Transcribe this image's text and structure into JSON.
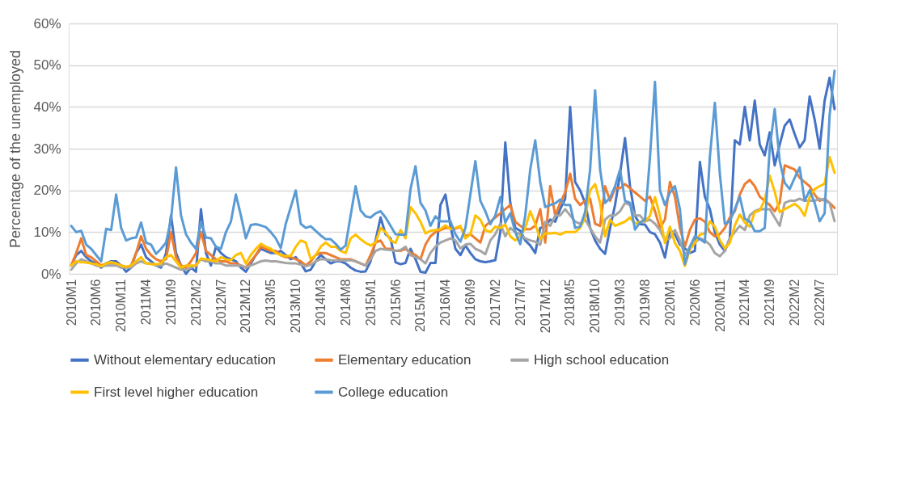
{
  "chart_data": {
    "type": "line",
    "ylabel": "Percentage of the unemployed",
    "categories": [
      "2010M1",
      null,
      null,
      null,
      null,
      "2010M6",
      null,
      null,
      null,
      null,
      "2010M11",
      null,
      null,
      null,
      null,
      "2011M4",
      null,
      null,
      null,
      null,
      "2011M9",
      null,
      null,
      null,
      null,
      "2012M2",
      null,
      null,
      null,
      null,
      "2012M7",
      null,
      null,
      null,
      null,
      "2012M12",
      null,
      null,
      null,
      null,
      "2013M5",
      null,
      null,
      null,
      null,
      "2013M10",
      null,
      null,
      null,
      null,
      "2014M3",
      null,
      null,
      null,
      null,
      "2014M8",
      null,
      null,
      null,
      null,
      "2015M1",
      null,
      null,
      null,
      null,
      "2015M6",
      null,
      null,
      null,
      null,
      "2015M11",
      null,
      null,
      null,
      null,
      "2016M4",
      null,
      null,
      null,
      null,
      "2016M9",
      null,
      null,
      null,
      null,
      "2017M2",
      null,
      null,
      null,
      null,
      "2017M7",
      null,
      null,
      null,
      null,
      "2017M12",
      null,
      null,
      null,
      null,
      "2018M5",
      null,
      null,
      null,
      null,
      "2018M10",
      null,
      null,
      null,
      null,
      "2019M3",
      null,
      null,
      null,
      null,
      "2019M8",
      null,
      null,
      null,
      null,
      "2020M1",
      null,
      null,
      null,
      null,
      "2020M6",
      null,
      null,
      null,
      null,
      "2020M11",
      null,
      null,
      null,
      null,
      "2021M4",
      null,
      null,
      null,
      null,
      "2021M9",
      null,
      null,
      null,
      null,
      "2022M2",
      null,
      null,
      null,
      null,
      "2022M7",
      null,
      null,
      null
    ],
    "ylim": [
      0,
      60
    ],
    "yticks": [
      {
        "value": 0,
        "label": "0%"
      },
      {
        "value": 10,
        "label": "10%"
      },
      {
        "value": 20,
        "label": "20%"
      },
      {
        "value": 30,
        "label": "30%"
      },
      {
        "value": 40,
        "label": "40%"
      },
      {
        "value": 50,
        "label": "50%"
      },
      {
        "value": 60,
        "label": "60%"
      }
    ],
    "grid": "y",
    "legend": "bottom",
    "line_style": "solid",
    "marker": "none",
    "series": [
      {
        "name": "Without elementary education",
        "color": "#4472c4",
        "values": [
          2,
          4.5,
          5.5,
          4,
          3,
          2.5,
          1.5,
          2.5,
          3,
          3,
          2,
          0.5,
          1.5,
          5,
          7,
          4,
          3,
          2,
          1.5,
          5,
          14,
          5,
          2,
          0,
          1.5,
          0.5,
          15.5,
          5,
          2,
          6.5,
          5,
          4,
          3.5,
          3,
          1.5,
          0.5,
          2.5,
          4.5,
          6,
          5.5,
          5,
          5,
          5.5,
          4.5,
          3.5,
          4,
          2.5,
          0.6,
          1,
          3,
          4.5,
          3.5,
          2.5,
          3,
          3,
          2.5,
          1.5,
          0.8,
          0.5,
          0.6,
          3,
          8,
          13.5,
          9.5,
          8.5,
          2.8,
          2.3,
          2.6,
          6,
          3.5,
          0.5,
          0.3,
          2.6,
          2.6,
          16.5,
          19,
          11.5,
          6,
          4.5,
          6.8,
          5,
          3.5,
          3,
          2.8,
          3,
          3.3,
          10,
          31.5,
          17,
          11,
          10.3,
          8,
          6.8,
          5,
          11,
          11.3,
          13,
          12.5,
          15.5,
          18,
          40,
          22,
          20,
          17,
          11,
          8,
          6,
          4.8,
          11,
          16.5,
          24,
          32.5,
          21,
          13.9,
          11.9,
          11.8,
          10,
          9.5,
          7.5,
          3.9,
          10.5,
          9.5,
          7,
          6.1,
          5,
          5.5,
          26.8,
          18.5,
          15.5,
          10,
          7,
          5.5,
          8.5,
          32,
          31,
          40,
          32,
          41.5,
          31,
          28.4,
          33.9,
          26,
          31,
          35.5,
          37,
          33.5,
          30.3,
          32,
          42.5,
          37,
          30,
          41.5,
          47,
          39.5
        ]
      },
      {
        "name": "Elementary education",
        "color": "#ed7d31",
        "values": [
          2,
          5,
          8.5,
          4.5,
          4,
          3,
          2,
          2.5,
          2.5,
          2.5,
          2,
          1.5,
          2,
          5,
          9,
          6,
          4.5,
          3.5,
          3,
          3.5,
          10,
          4,
          2,
          1.5,
          3,
          5,
          10,
          5.5,
          4.5,
          3.5,
          3,
          3,
          2.5,
          2.5,
          2,
          1.5,
          3,
          4.5,
          6.5,
          6,
          5.5,
          5.5,
          4.5,
          4,
          4,
          3.5,
          3,
          2,
          3,
          4.5,
          5,
          5,
          4.5,
          4,
          3.5,
          3.5,
          3.5,
          3,
          2.5,
          2,
          4.5,
          7.5,
          8,
          6,
          6,
          5.5,
          5.5,
          6,
          5,
          4.5,
          3.5,
          7,
          9,
          10,
          10.5,
          11,
          11,
          10.8,
          11.3,
          9,
          9.5,
          8.5,
          7.5,
          11.5,
          12.5,
          13.5,
          14.5,
          15.5,
          16.5,
          12.5,
          11.5,
          10.7,
          10.7,
          11.5,
          15.5,
          7.5,
          21,
          14,
          17,
          19.5,
          24,
          18,
          16.5,
          17.5,
          18,
          12,
          11.5,
          21,
          17.5,
          20.5,
          20.5,
          21.5,
          20.5,
          19.5,
          18.5,
          17.5,
          18.5,
          15,
          11,
          13,
          22,
          18.5,
          11,
          6.5,
          10.5,
          13,
          13.3,
          12.5,
          10,
          9,
          9.5,
          11,
          13.5,
          15,
          19,
          21.5,
          22.5,
          21,
          18.5,
          17.5,
          16.5,
          15,
          17,
          26,
          25.5,
          25,
          23,
          22,
          21,
          19,
          17.5,
          18,
          17,
          15.8
        ]
      },
      {
        "name": "High school education",
        "color": "#a5a5a5",
        "values": [
          1,
          2.5,
          3.5,
          3,
          2.5,
          2,
          1.8,
          2,
          2,
          2,
          1.5,
          1.5,
          1.5,
          2.5,
          3,
          2.5,
          2.5,
          2,
          2,
          2.5,
          2,
          1.5,
          1,
          1,
          1.5,
          2,
          3.5,
          3,
          3,
          2.5,
          2.5,
          2,
          2,
          2,
          2,
          1.5,
          2,
          2.5,
          3,
          3.2,
          3,
          3,
          2.8,
          2.6,
          2.5,
          2.5,
          2.2,
          1.8,
          2.2,
          3,
          3.5,
          3.5,
          3.3,
          3.2,
          3.3,
          3.2,
          3.3,
          3,
          2.5,
          2,
          3.5,
          5.5,
          6,
          5.8,
          5.7,
          5.5,
          5.7,
          6.5,
          4.5,
          4,
          3.5,
          2.5,
          5,
          6.5,
          7.5,
          8,
          8.5,
          8,
          6.1,
          7,
          7.2,
          6,
          5.5,
          4.7,
          8,
          9.5,
          12,
          9,
          11,
          10,
          9.4,
          8.5,
          8,
          7.7,
          7,
          12.5,
          11.5,
          14,
          14,
          15.5,
          14,
          12.5,
          12,
          13,
          11,
          9,
          7.5,
          13,
          14,
          14,
          15,
          17,
          16.5,
          14,
          14,
          12.5,
          13,
          12,
          10.5,
          8,
          8.5,
          10.5,
          8,
          4.5,
          6.5,
          7.5,
          8.5,
          8,
          7,
          5,
          4.2,
          5.5,
          8.5,
          10,
          11.5,
          10.5,
          14,
          15,
          15.5,
          15.5,
          15.5,
          13.5,
          11.5,
          17,
          17.5,
          17.5,
          18,
          17.5,
          17.5,
          17.5,
          18,
          17.5,
          17,
          12.6
        ]
      },
      {
        "name": "First level higher education",
        "color": "#ffc000",
        "values": [
          2,
          3,
          2.8,
          2.7,
          2.5,
          2.3,
          1.8,
          2.5,
          2.8,
          2.5,
          2,
          1.7,
          2,
          3,
          4,
          2.5,
          2.3,
          2.3,
          2.5,
          4,
          4.5,
          3,
          1.5,
          2,
          2,
          2,
          3.7,
          3.5,
          3.3,
          3,
          4,
          3.5,
          3.3,
          4.5,
          5,
          2.5,
          4.5,
          6,
          7.2,
          6.5,
          6,
          5,
          4.5,
          4.3,
          4.3,
          6.5,
          8,
          7.5,
          3.5,
          4.5,
          6.5,
          7.5,
          6.5,
          6.5,
          5.5,
          5,
          8.5,
          9.4,
          8.3,
          7.4,
          6.8,
          7.5,
          11,
          10,
          8,
          7.4,
          10.5,
          8.5,
          16,
          14.5,
          12.5,
          9.7,
          10.3,
          10.5,
          10.7,
          11.6,
          10.7,
          11,
          11.5,
          8.5,
          9.5,
          14,
          13,
          10.5,
          10,
          11.3,
          11,
          11.8,
          9,
          8,
          9,
          11,
          15,
          12,
          8.3,
          9.7,
          9.7,
          9.8,
          9.4,
          10,
          10,
          10,
          11,
          13.5,
          20,
          21.5,
          17,
          9,
          13,
          11.5,
          12,
          12.5,
          13.5,
          12,
          12.5,
          12.6,
          13.9,
          18.4,
          13.9,
          7.4,
          11.3,
          7.4,
          5.5,
          1.9,
          5.8,
          7.4,
          9.4,
          9.7,
          12.6,
          11.3,
          8.1,
          6.1,
          7.4,
          11.6,
          14.2,
          12.3,
          11.3,
          14.8,
          15.2,
          17.7,
          23.5,
          19.7,
          14.8,
          15.5,
          16.1,
          16.8,
          15.8,
          13.9,
          18.4,
          20.3,
          21,
          21.6,
          28,
          24.2
        ]
      },
      {
        "name": "College education",
        "color": "#5b9bd5",
        "values": [
          11.5,
          10,
          10.3,
          7,
          6,
          4.5,
          3,
          10.8,
          10.5,
          19,
          11,
          8,
          8.5,
          8.7,
          12.3,
          7.5,
          7,
          4.8,
          6,
          7.5,
          13,
          25.5,
          14,
          9.5,
          7.5,
          6,
          12.5,
          8.7,
          8.5,
          6.5,
          6,
          10,
          12.5,
          19,
          14,
          8.5,
          11.7,
          11.9,
          11.6,
          11.2,
          10,
          8.5,
          6.2,
          12,
          16,
          20,
          12,
          11,
          11.4,
          10.3,
          9.2,
          8.3,
          8.3,
          7.2,
          5.8,
          6.8,
          14,
          21,
          15.2,
          13.8,
          13.5,
          14.5,
          15,
          13.5,
          11.5,
          9.5,
          9.4,
          9.4,
          20.3,
          25.8,
          17,
          15.2,
          11.5,
          13.8,
          12.6,
          12.6,
          12.6,
          9.5,
          7.7,
          11,
          19,
          27,
          17.5,
          15,
          11.9,
          14,
          18.4,
          12.3,
          14.5,
          10,
          7.1,
          14,
          25,
          32,
          22,
          16,
          16.5,
          16.9,
          17.8,
          16.5,
          16.5,
          11,
          11.3,
          14.8,
          25,
          44,
          25,
          17,
          18.2,
          21,
          25,
          17.5,
          17,
          10.6,
          12.3,
          12.9,
          28,
          46,
          20,
          16.5,
          19.5,
          21,
          15.5,
          2.3,
          6.5,
          9,
          8.3,
          7.5,
          28,
          41,
          24,
          12,
          12.6,
          15.5,
          18.5,
          13.2,
          12.5,
          10.2,
          10.2,
          11,
          30,
          39.5,
          27,
          21.8,
          20.3,
          23,
          25.5,
          17.5,
          20,
          17,
          12.6,
          14.5,
          38,
          48.7
        ]
      }
    ]
  }
}
